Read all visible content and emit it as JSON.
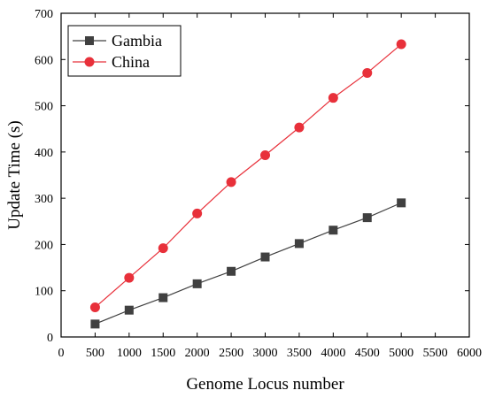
{
  "chart_data": {
    "type": "line",
    "xlabel": "Genome Locus number",
    "ylabel": "Update Time (s)",
    "xlim": [
      0,
      6000
    ],
    "ylim": [
      0,
      700
    ],
    "x_ticks": [
      0,
      500,
      1000,
      1500,
      2000,
      2500,
      3000,
      3500,
      4000,
      4500,
      5000,
      5500,
      6000
    ],
    "y_ticks": [
      0,
      100,
      200,
      300,
      400,
      500,
      600,
      700
    ],
    "x": [
      500,
      1000,
      1500,
      2000,
      2500,
      3000,
      3500,
      4000,
      4500,
      5000
    ],
    "grid": false,
    "legend_position": "top-left",
    "series": [
      {
        "name": "Gambia",
        "marker": "square",
        "color": "#404040",
        "values": [
          28,
          58,
          85,
          115,
          142,
          173,
          202,
          231,
          258,
          290
        ]
      },
      {
        "name": "China",
        "marker": "circle",
        "color": "#e8303a",
        "values": [
          64,
          128,
          192,
          267,
          335,
          393,
          453,
          517,
          571,
          633
        ]
      }
    ]
  }
}
